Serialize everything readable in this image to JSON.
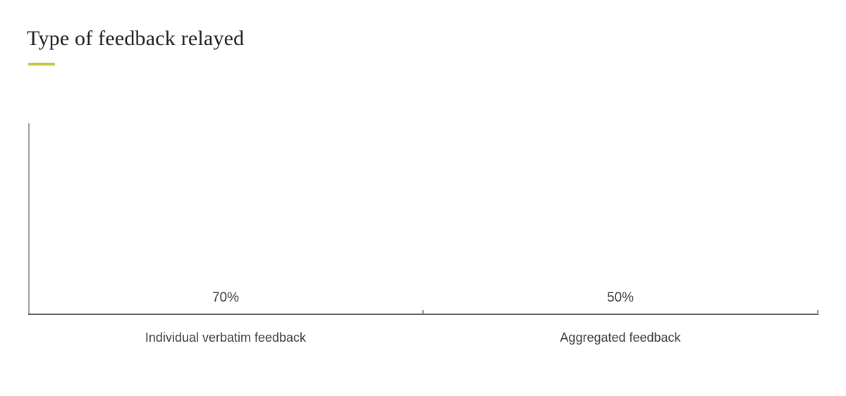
{
  "title": "Type of feedback relayed",
  "accent_color": "#c1c83a",
  "chart_data": {
    "type": "bar",
    "title": "Type of feedback relayed",
    "categories": [
      "Individual verbatim feedback",
      "Aggregated feedback"
    ],
    "values": [
      70,
      50
    ],
    "value_labels": [
      "70%",
      "50%"
    ],
    "unit": "%",
    "xlabel": "",
    "ylabel": "",
    "ylim": [
      0,
      100
    ],
    "grid": false,
    "legend": false,
    "bar_color": "#363e4b",
    "axis_color": "#9aa0a8",
    "baseline_color": "#5b6068"
  }
}
